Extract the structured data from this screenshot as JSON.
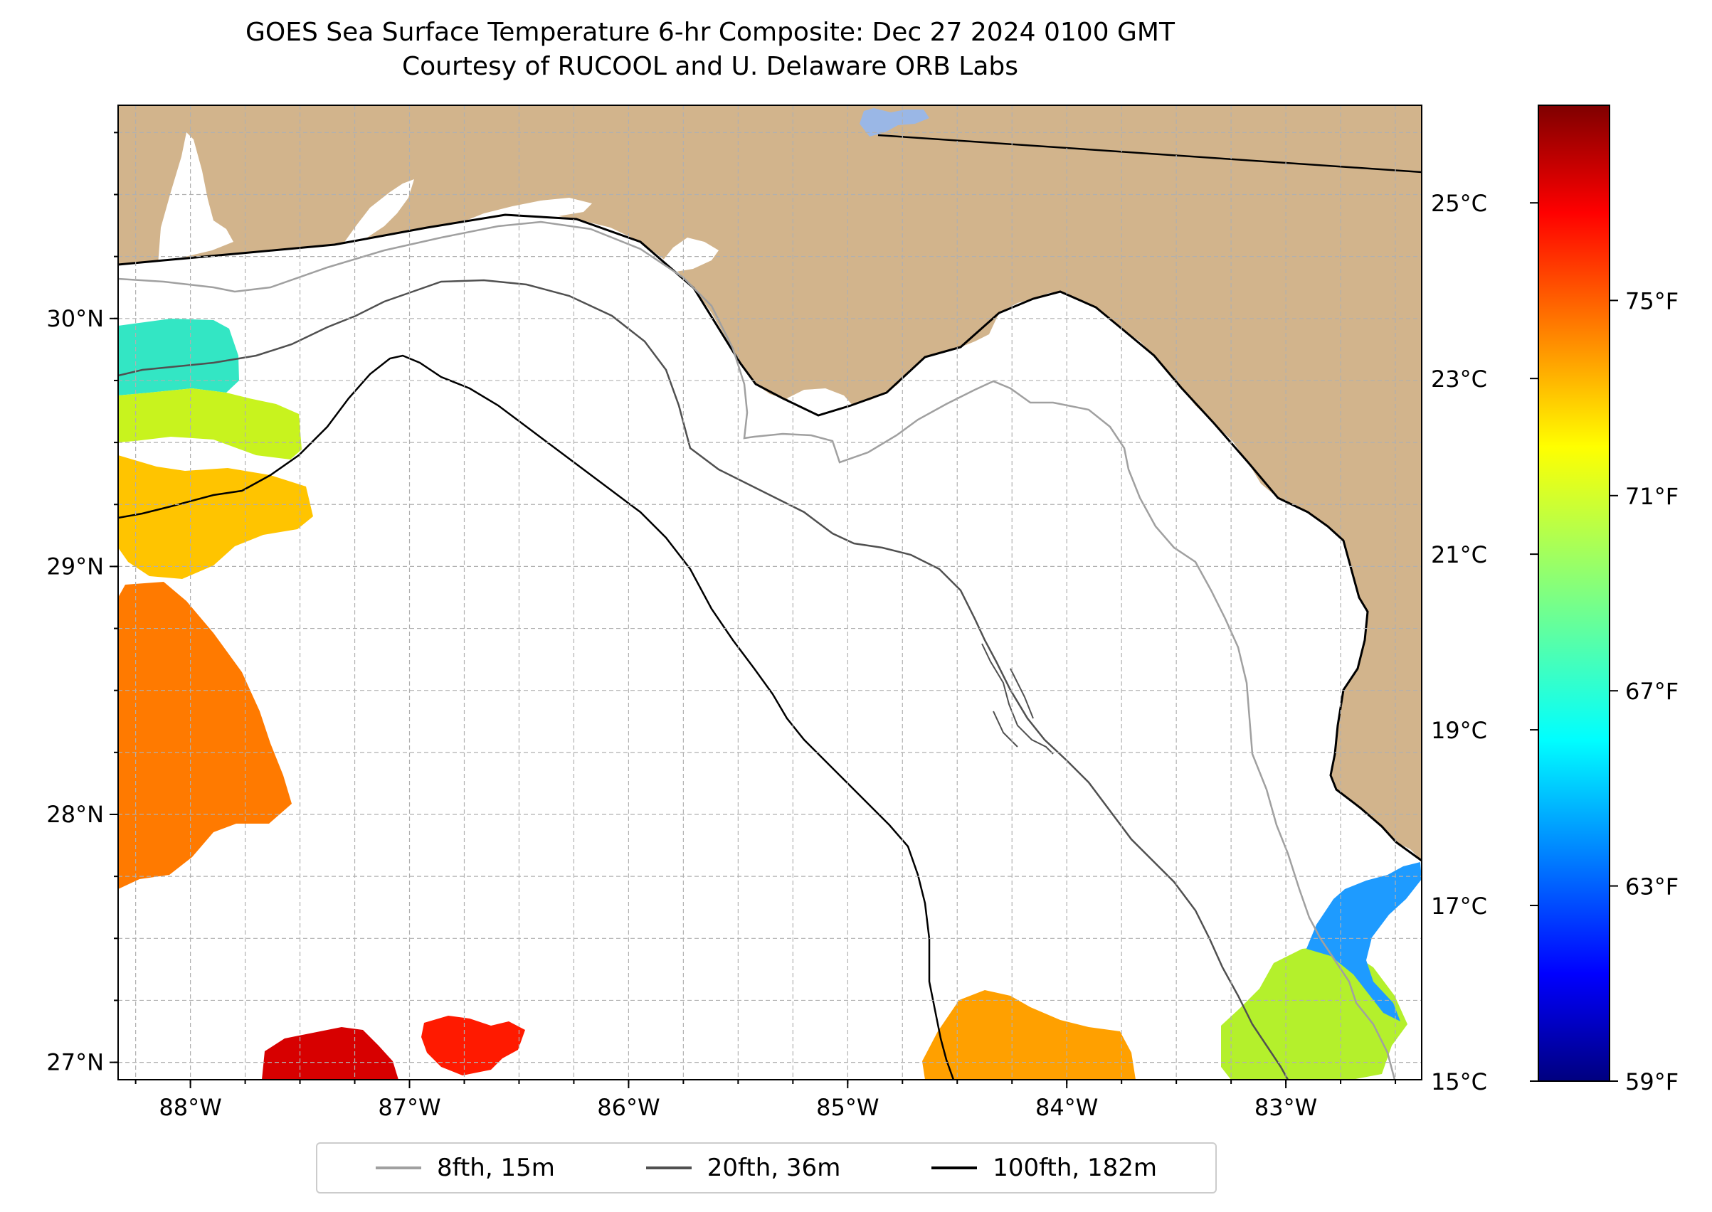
{
  "title": {
    "line1": "GOES Sea Surface Temperature 6-hr Composite: Dec 27 2024 0100 GMT",
    "line2": "Courtesy of RUCOOL and U. Delaware ORB Labs"
  },
  "map": {
    "lon_range": [
      -88.33,
      -82.38
    ],
    "lat_range": [
      26.93,
      30.86
    ],
    "land_color": "#d2b48c",
    "ocean_color": "#ffffff",
    "gridlines": true,
    "lon_ticks": [
      {
        "value": -88,
        "label": "88°W"
      },
      {
        "value": -87,
        "label": "87°W"
      },
      {
        "value": -86,
        "label": "86°W"
      },
      {
        "value": -85,
        "label": "85°W"
      },
      {
        "value": -84,
        "label": "84°W"
      },
      {
        "value": -83,
        "label": "83°W"
      }
    ],
    "lat_ticks": [
      {
        "value": 27,
        "label": "27°N"
      },
      {
        "value": 28,
        "label": "28°N"
      },
      {
        "value": 29,
        "label": "29°N"
      },
      {
        "value": 30,
        "label": "30°N"
      }
    ]
  },
  "sst_patches": [
    {
      "id": "northwest-cool",
      "color": "#33e6c4",
      "temp_f": 68
    },
    {
      "id": "northwest-yellow",
      "color": "#c8f31e",
      "temp_f": 71
    },
    {
      "id": "west-gold",
      "color": "#ffc400",
      "temp_f": 73
    },
    {
      "id": "west-orange",
      "color": "#ff7a00",
      "temp_f": 75
    },
    {
      "id": "southwest-darkred",
      "color": "#d70000",
      "temp_f": 77
    },
    {
      "id": "south-red",
      "color": "#ff1a00",
      "temp_f": 77
    },
    {
      "id": "south-orange",
      "color": "#ffa000",
      "temp_f": 74
    },
    {
      "id": "southeast-green",
      "color": "#b4f02c",
      "temp_f": 70
    },
    {
      "id": "southeast-blue",
      "color": "#1e9bff",
      "temp_f": 65
    }
  ],
  "colorbar": {
    "colormap": "jet",
    "celsius_ticks": [
      {
        "value": 15,
        "label": "15°C"
      },
      {
        "value": 17,
        "label": "17°C"
      },
      {
        "value": 19,
        "label": "19°C"
      },
      {
        "value": 21,
        "label": "21°C"
      },
      {
        "value": 23,
        "label": "23°C"
      },
      {
        "value": 25,
        "label": "25°C"
      }
    ],
    "fahrenheit_ticks": [
      {
        "value": 59,
        "label": "59°F"
      },
      {
        "value": 63,
        "label": "63°F"
      },
      {
        "value": 67,
        "label": "67°F"
      },
      {
        "value": 71,
        "label": "71°F"
      },
      {
        "value": 75,
        "label": "75°F"
      }
    ],
    "range_f": [
      59,
      79
    ]
  },
  "legend": {
    "items": [
      {
        "label": "8fth, 15m",
        "color": "#a0a0a0"
      },
      {
        "label": "20fth, 36m",
        "color": "#505050"
      },
      {
        "label": "100fth, 182m",
        "color": "#000000"
      }
    ]
  }
}
